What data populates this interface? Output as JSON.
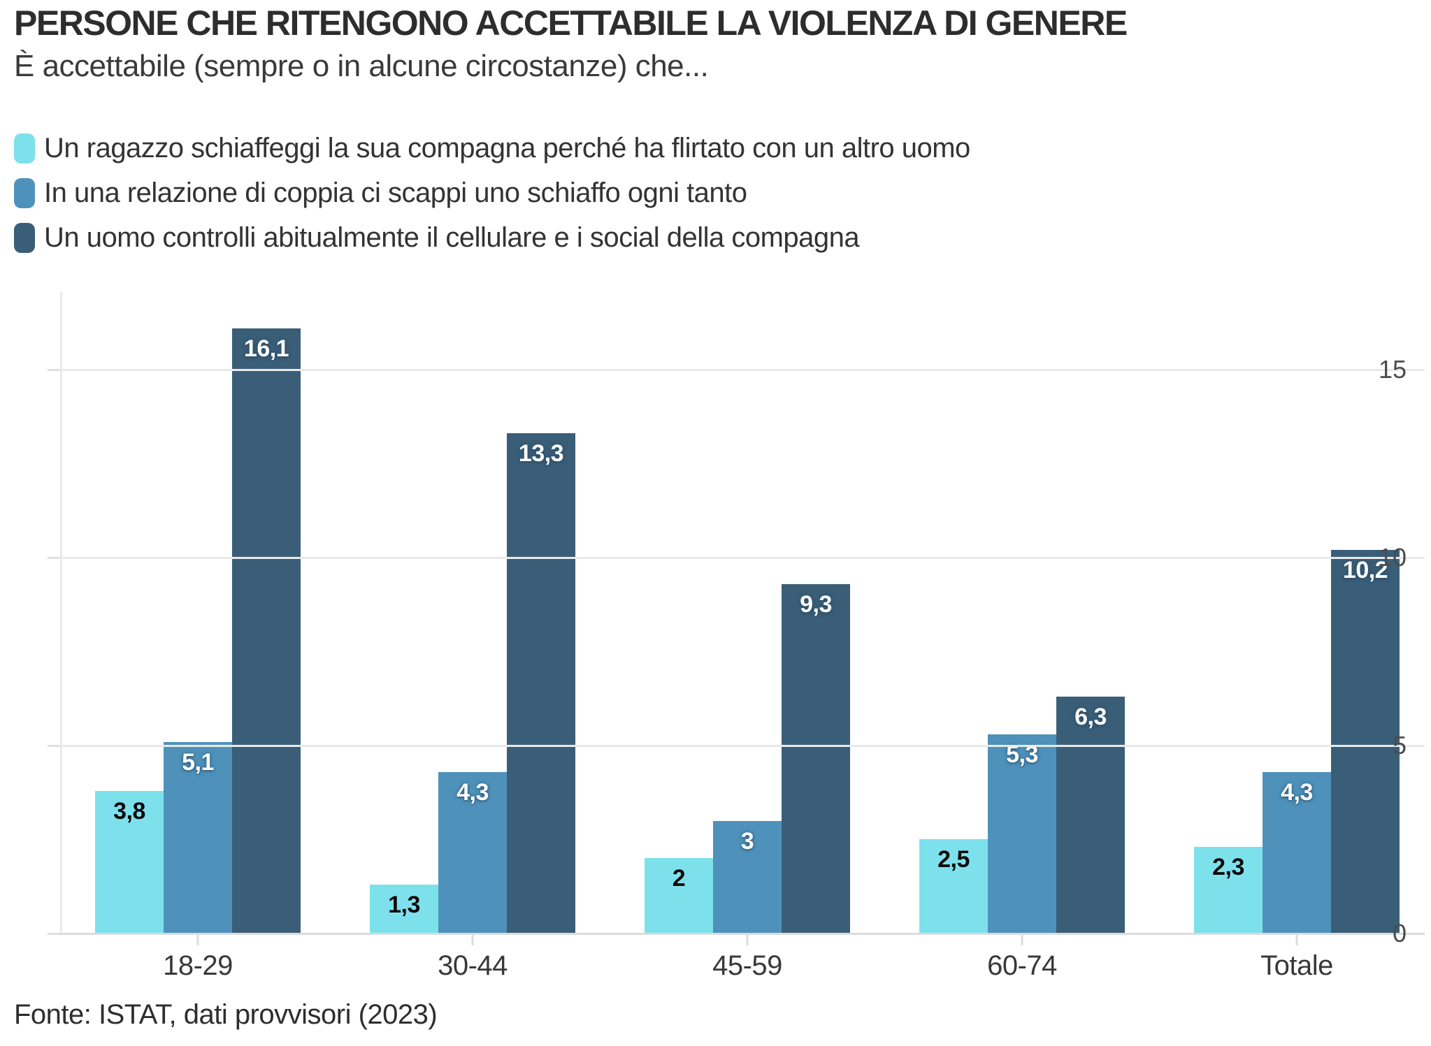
{
  "header": {
    "title": "PERSONE CHE RITENGONO ACCETTABILE LA VIOLENZA DI GENERE",
    "subtitle": "È accettabile (sempre o in alcune circostanze) che..."
  },
  "colors": {
    "series1": "#7DE1EC",
    "series2": "#4E92BB",
    "series3": "#3A5E78",
    "grid": "#e9e9e9",
    "label_on_light_bar": "#0b0b0b",
    "label_on_dark_bar": "#ffffff"
  },
  "chart_data": {
    "type": "bar",
    "title": "PERSONE CHE RITENGONO ACCETTABILE LA VIOLENZA DI GENERE",
    "subtitle": "È accettabile (sempre o in alcune circostanze) che...",
    "categories": [
      "18-29",
      "30-44",
      "45-59",
      "60-74",
      "Totale"
    ],
    "series": [
      {
        "name": "Un ragazzo schiaffeggi la sua compagna perché ha flirtato con un altro uomo",
        "color": "#7DE1EC",
        "label_style": "dark",
        "values": [
          3.8,
          1.3,
          2,
          2.5,
          2.3
        ],
        "labels": [
          "3,8",
          "1,3",
          "2",
          "2,5",
          "2,3"
        ]
      },
      {
        "name": "In una relazione di coppia ci scappi uno schiaffo ogni tanto",
        "color": "#4E92BB",
        "label_style": "light",
        "values": [
          5.1,
          4.3,
          3,
          5.3,
          4.3
        ],
        "labels": [
          "5,1",
          "4,3",
          "3",
          "5,3",
          "4,3"
        ]
      },
      {
        "name": "Un uomo controlli abitualmente il cellulare e i social della compagna",
        "color": "#3A5E78",
        "label_style": "light",
        "values": [
          16.1,
          13.3,
          9.3,
          6.3,
          10.2
        ],
        "labels": [
          "16,1",
          "13,3",
          "9,3",
          "6,3",
          "10,2"
        ]
      }
    ],
    "y_ticks": [
      0,
      5,
      10,
      15
    ],
    "ylim": [
      0,
      17
    ],
    "xlabel": "",
    "ylabel": "",
    "grid": "horizontal",
    "legend_position": "top-left"
  },
  "footer": {
    "source": "Fonte: ISTAT, dati provvisori (2023)"
  }
}
